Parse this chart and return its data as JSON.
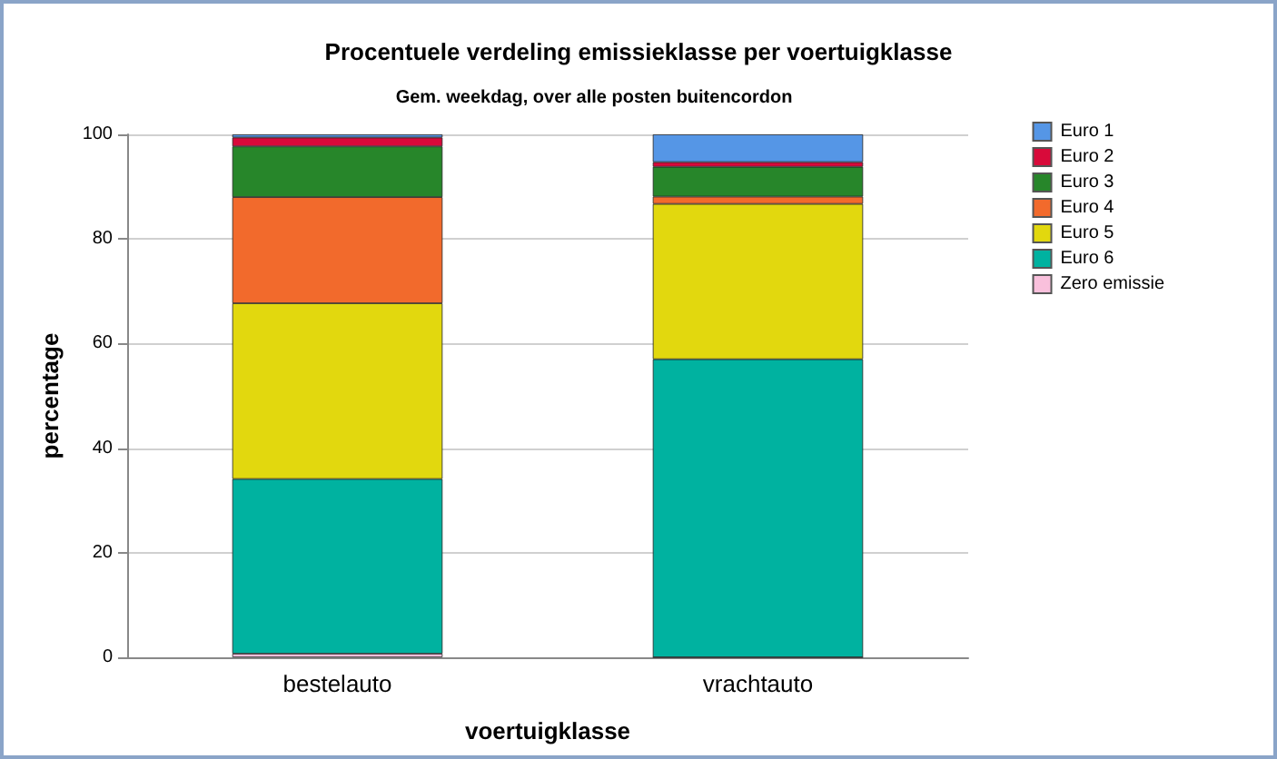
{
  "chart_data": {
    "type": "bar",
    "title": "Procentuele verdeling emissieklasse per voertuigklasse",
    "subtitle": "Gem. weekdag, over alle posten buitencordon",
    "xlabel": "voertuigklasse",
    "ylabel": "percentage",
    "categories": [
      "bestelauto",
      "vrachtauto"
    ],
    "stacked": true,
    "series": [
      {
        "name": "Zero emissie",
        "color": "#f9c0dc",
        "values": [
          0.7,
          0
        ]
      },
      {
        "name": "Euro 6",
        "color": "#00b2a0",
        "values": [
          33.4,
          57.0
        ]
      },
      {
        "name": "Euro 5",
        "color": "#e2d80e",
        "values": [
          33.6,
          29.7
        ]
      },
      {
        "name": "Euro 4",
        "color": "#f26a2c",
        "values": [
          20.3,
          1.4
        ]
      },
      {
        "name": "Euro 3",
        "color": "#27862a",
        "values": [
          9.7,
          5.7
        ]
      },
      {
        "name": "Euro 2",
        "color": "#d80a3a",
        "values": [
          1.7,
          0.9
        ]
      },
      {
        "name": "Euro 1",
        "color": "#5596e6",
        "values": [
          0.6,
          5.3
        ]
      }
    ],
    "ylim": [
      0,
      100
    ],
    "yticks": [
      0,
      20,
      40,
      60,
      80,
      100
    ],
    "grid": "y",
    "legend": "top right"
  }
}
